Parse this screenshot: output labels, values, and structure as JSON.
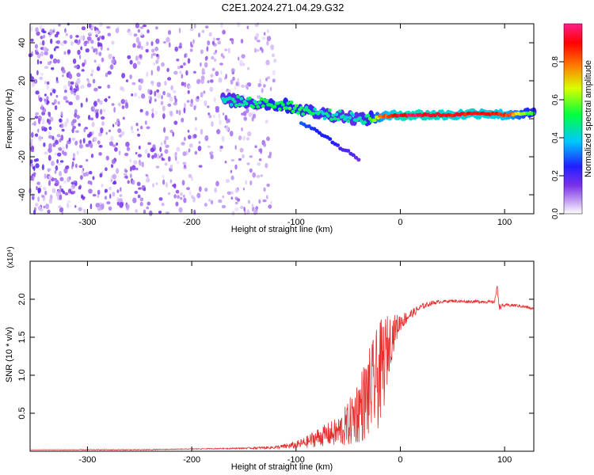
{
  "title": "C2E1.2024.271.04.29.G32",
  "colors": {
    "snr_line": "#e53030",
    "axis": "#000000",
    "spectro_low": "#7b2fe0",
    "spectro_high": "#ff0000"
  },
  "chart_data": [
    {
      "type": "heatmap",
      "title": "C2E1.2024.271.04.29.G32",
      "xlabel": "Height of straight line (km)",
      "ylabel": "Frequency (Hz)",
      "xlim": [
        -355,
        128
      ],
      "ylim": [
        -50,
        50
      ],
      "xticks": [
        -300,
        -200,
        -100,
        0,
        100
      ],
      "xtick_labels": [
        "-300",
        "-200",
        "-100",
        "0",
        "100"
      ],
      "yticks": [
        -40,
        -20,
        0,
        20,
        40
      ],
      "ytick_labels": [
        "-40",
        "-20",
        "0",
        "20",
        "40"
      ],
      "colorbar": {
        "label": "Normalized spectral amplitude",
        "range": [
          0,
          1
        ],
        "ticks": [
          0.0,
          0.2,
          0.4,
          0.6,
          0.8
        ],
        "tick_labels": [
          "0.0",
          "0.2",
          "0.4",
          "0.6",
          "0.8"
        ],
        "colormap": "rainbow (white/violet → blue → cyan → green → yellow → red → magenta)"
      },
      "main_trace": {
        "x": [
          -170,
          -150,
          -130,
          -110,
          -95,
          -80,
          -65,
          -50,
          -40,
          -30,
          -20,
          0,
          20,
          50,
          80,
          100,
          128
        ],
        "y": [
          10,
          9,
          8,
          7,
          5,
          3,
          2,
          1,
          0,
          0,
          1,
          2,
          2,
          2,
          3,
          2,
          3
        ],
        "amplitude": [
          0.4,
          0.45,
          0.5,
          0.55,
          0.5,
          0.45,
          0.45,
          0.4,
          0.4,
          0.5,
          0.75,
          0.95,
          0.95,
          0.9,
          0.9,
          0.85,
          0.5
        ]
      },
      "secondary_trace": {
        "x": [
          -95,
          -80,
          -65,
          -55,
          -45,
          -40
        ],
        "y": [
          -2,
          -6,
          -12,
          -16,
          -19,
          -22
        ],
        "amplitude": [
          0.3,
          0.25,
          0.25,
          0.2,
          0.2,
          0.15
        ]
      },
      "noise_region": {
        "xlim": [
          -355,
          -120
        ],
        "amplitude": [
          0.02,
          0.2
        ]
      }
    },
    {
      "type": "line",
      "xlabel": "Height of straight line (km)",
      "ylabel": "SNR (10 * v/v)",
      "y_multiplier": "(x10⁴)",
      "xlim": [
        -355,
        128
      ],
      "ylim": [
        0,
        2.5
      ],
      "xticks": [
        -300,
        -200,
        -100,
        0,
        100
      ],
      "xtick_labels": [
        "-300",
        "-200",
        "-100",
        "0",
        "100"
      ],
      "yticks": [
        0.5,
        1.0,
        1.5,
        2.0
      ],
      "ytick_labels": [
        "0.5",
        "1.0",
        "1.5",
        "2.0"
      ],
      "series": [
        {
          "x": [
            -355,
            -300,
            -250,
            -200,
            -150,
            -120,
            -100,
            -90,
            -80,
            -70,
            -60,
            -50,
            -40,
            -30,
            -20,
            -15,
            -10,
            -5,
            0,
            10,
            20,
            30,
            40,
            50,
            60,
            70,
            80,
            90,
            93,
            95,
            100,
            110,
            120,
            128
          ],
          "y": [
            0.02,
            0.02,
            0.02,
            0.03,
            0.04,
            0.05,
            0.08,
            0.12,
            0.18,
            0.22,
            0.25,
            0.35,
            0.55,
            0.75,
            1.0,
            1.2,
            1.45,
            1.6,
            1.7,
            1.8,
            1.9,
            1.95,
            1.97,
            1.98,
            1.97,
            1.97,
            1.97,
            1.96,
            2.15,
            1.9,
            1.92,
            1.92,
            1.9,
            1.87
          ],
          "noise": [
            0.0,
            0.005,
            0.005,
            0.005,
            0.01,
            0.02,
            0.05,
            0.08,
            0.12,
            0.15,
            0.2,
            0.3,
            0.45,
            0.6,
            0.7,
            0.6,
            0.35,
            0.2,
            0.12,
            0.06,
            0.04,
            0.03,
            0.02,
            0.02,
            0.02,
            0.02,
            0.02,
            0.02,
            0.05,
            0.04,
            0.02,
            0.02,
            0.02,
            0.02
          ]
        }
      ]
    }
  ]
}
